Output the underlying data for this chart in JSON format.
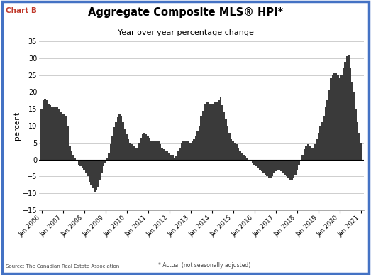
{
  "title": "Aggregate Composite MLS® HPI*",
  "subtitle": "Year-over-year percentage change",
  "ylabel": "percent",
  "source_text": "Source: The Canadian Real Estate Association",
  "footnote": "* Actual (not seasonally adjusted)",
  "chart_label": "Chart B",
  "ylim": [
    -15,
    35
  ],
  "yticks": [
    -15,
    -10,
    -5,
    0,
    5,
    10,
    15,
    20,
    25,
    30,
    35
  ],
  "bar_color": "#3a3a3a",
  "background_color": "#ffffff",
  "grid_color": "#bbbbbb",
  "border_color": "#4472c4",
  "values": [
    15.0,
    17.5,
    18.0,
    17.5,
    16.5,
    16.0,
    15.5,
    15.5,
    15.5,
    15.5,
    15.0,
    14.0,
    13.5,
    13.5,
    13.0,
    10.0,
    4.0,
    2.5,
    1.5,
    0.5,
    -0.5,
    -1.5,
    -2.0,
    -2.5,
    -3.0,
    -4.0,
    -5.0,
    -6.5,
    -7.5,
    -8.5,
    -9.5,
    -9.0,
    -8.0,
    -6.0,
    -4.0,
    -2.0,
    -1.0,
    0.5,
    2.0,
    4.5,
    7.0,
    9.5,
    11.0,
    12.5,
    13.5,
    13.0,
    11.0,
    9.0,
    7.5,
    6.0,
    5.0,
    4.5,
    4.0,
    3.5,
    3.5,
    5.0,
    6.5,
    7.5,
    8.0,
    7.5,
    7.0,
    6.5,
    5.5,
    5.5,
    5.5,
    5.5,
    5.5,
    4.5,
    3.5,
    3.0,
    2.5,
    2.5,
    2.0,
    1.5,
    1.5,
    0.5,
    1.0,
    2.5,
    3.5,
    5.0,
    5.5,
    5.5,
    5.5,
    5.5,
    5.0,
    5.5,
    6.0,
    7.0,
    8.5,
    10.0,
    13.0,
    14.5,
    16.5,
    17.0,
    17.0,
    16.5,
    16.5,
    16.5,
    17.0,
    17.0,
    17.5,
    18.5,
    16.0,
    14.0,
    12.0,
    10.0,
    8.0,
    6.0,
    5.5,
    5.0,
    4.5,
    3.5,
    2.5,
    2.0,
    1.5,
    1.0,
    0.5,
    0.0,
    -0.5,
    -1.0,
    -1.5,
    -2.0,
    -2.5,
    -3.0,
    -3.5,
    -4.0,
    -4.5,
    -5.0,
    -5.5,
    -5.5,
    -5.0,
    -4.0,
    -3.5,
    -3.0,
    -3.0,
    -3.5,
    -4.0,
    -4.5,
    -5.0,
    -5.5,
    -6.0,
    -6.0,
    -5.5,
    -4.5,
    -3.0,
    -1.5,
    0.0,
    1.5,
    3.0,
    4.0,
    4.5,
    4.0,
    3.5,
    3.5,
    4.5,
    6.0,
    8.0,
    10.0,
    11.0,
    13.0,
    15.5,
    17.5,
    20.5,
    24.0,
    25.0,
    25.5,
    25.5,
    25.0,
    24.0,
    25.0,
    27.0,
    29.0,
    30.5,
    31.0,
    27.0,
    23.0,
    20.0,
    15.0,
    11.0,
    8.0,
    5.0
  ],
  "start_year": 2006,
  "start_month": 1
}
